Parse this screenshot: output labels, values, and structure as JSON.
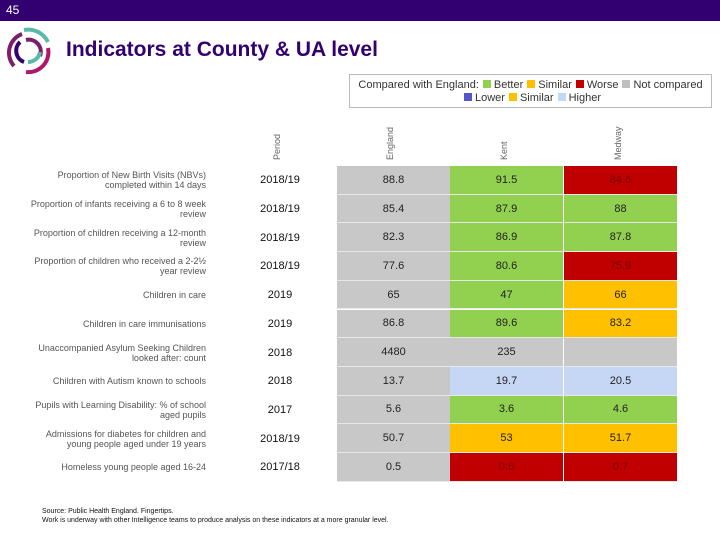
{
  "page_number": "45",
  "title": "Indicators at County & UA level",
  "legend": {
    "label": "Compared with England:",
    "row1": [
      {
        "label": "Better",
        "color": "#92d050"
      },
      {
        "label": "Similar",
        "color": "#ffc000"
      },
      {
        "label": "Worse",
        "color": "#c00000"
      },
      {
        "label": "Not compared",
        "color": "#bfbfbf"
      }
    ],
    "row2": [
      {
        "label": "Lower",
        "color": "#5555cc"
      },
      {
        "label": "Similar",
        "color": "#ffc000"
      },
      {
        "label": "Higher",
        "color": "#c5d7f5"
      }
    ]
  },
  "columns": [
    "Period",
    "England",
    "Kent",
    "Medway"
  ],
  "colors": {
    "better": "#92d050",
    "similar": "#ffc000",
    "worse": "#c00000",
    "none": "#c8c8c8",
    "higher": "#c5d7f5"
  },
  "rows": [
    {
      "label": "Proportion of New Birth Visits (NBVs) completed within 14 days",
      "period": "2018/19",
      "england": "88.8",
      "kent": "91.5",
      "kent_status": "better",
      "medway": "84.6",
      "medway_status": "worse"
    },
    {
      "label": "Proportion of infants receiving a 6 to 8 week review",
      "period": "2018/19",
      "england": "85.4",
      "kent": "87.9",
      "kent_status": "better",
      "medway": "88",
      "medway_status": "better"
    },
    {
      "label": "Proportion of children receiving a 12-month review",
      "period": "2018/19",
      "england": "82.3",
      "kent": "86.9",
      "kent_status": "better",
      "medway": "87.8",
      "medway_status": "better"
    },
    {
      "label": "Proportion of children who received a 2-2½ year review",
      "period": "2018/19",
      "england": "77.6",
      "kent": "80.6",
      "kent_status": "better",
      "medway": "75.9",
      "medway_status": "worse"
    },
    {
      "label": "Children in care",
      "period": "2019",
      "england": "65",
      "kent": "47",
      "kent_status": "better",
      "medway": "66",
      "medway_status": "similar"
    },
    {
      "label": "Children in care immunisations",
      "period": "2019",
      "england": "86.8",
      "kent": "89.6",
      "kent_status": "better",
      "medway": "83.2",
      "medway_status": "similar"
    },
    {
      "label": "Unaccompanied Asylum Seeking Children looked after: count",
      "period": "2018",
      "england": "4480",
      "kent": "235",
      "kent_status": "none",
      "medway": "",
      "medway_status": "none"
    },
    {
      "label": "Children with Autism known to schools",
      "period": "2018",
      "england": "13.7",
      "kent": "19.7",
      "kent_status": "higher",
      "medway": "20.5",
      "medway_status": "higher"
    },
    {
      "label": "Pupils with Learning Disability: % of school aged pupils",
      "period": "2017",
      "england": "5.6",
      "kent": "3.6",
      "kent_status": "better",
      "medway": "4.6",
      "medway_status": "better"
    },
    {
      "label": "Admissions for diabetes for children and young people aged under 19 years",
      "period": "2018/19",
      "england": "50.7",
      "kent": "53",
      "kent_status": "similar",
      "medway": "51.7",
      "medway_status": "similar"
    },
    {
      "label": "Homeless young people aged 16-24",
      "period": "2017/18",
      "england": "0.5",
      "kent": "0.6",
      "kent_status": "worse",
      "medway": "0.7",
      "medway_status": "worse"
    }
  ],
  "source": [
    "Source: Public Health England. Fingertips.",
    "Work is underway with other Intelligence teams to produce analysis on these indicators at a more granular level."
  ]
}
